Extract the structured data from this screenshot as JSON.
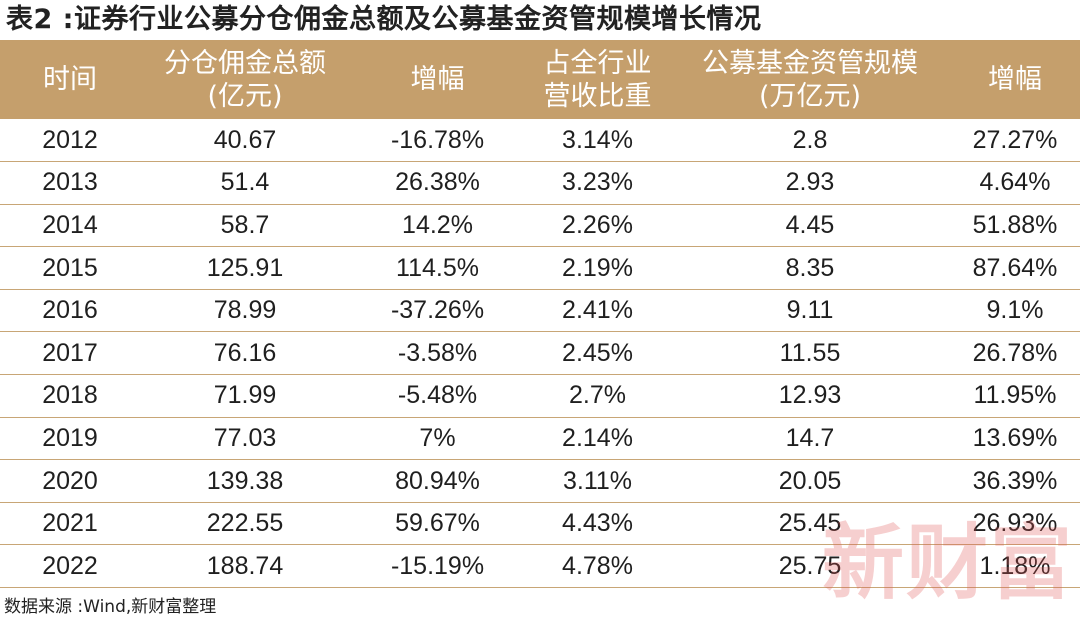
{
  "title": "表2 :证券行业公募分仓佣金总额及公募基金资管规模增长情况",
  "table": {
    "headers": [
      {
        "line1": "时间",
        "line2": ""
      },
      {
        "line1": "分仓佣金总额",
        "line2": "(亿元)"
      },
      {
        "line1": "增幅",
        "line2": ""
      },
      {
        "line1": "占全行业",
        "line2": "营收比重"
      },
      {
        "line1": "公募基金资管规模",
        "line2": "(万亿元)"
      },
      {
        "line1": "增幅",
        "line2": ""
      }
    ],
    "rows": [
      [
        "2012",
        "40.67",
        "-16.78%",
        "3.14%",
        "2.8",
        "27.27%"
      ],
      [
        "2013",
        "51.4",
        "26.38%",
        "3.23%",
        "2.93",
        "4.64%"
      ],
      [
        "2014",
        "58.7",
        "14.2%",
        "2.26%",
        "4.45",
        "51.88%"
      ],
      [
        "2015",
        "125.91",
        "114.5%",
        "2.19%",
        "8.35",
        "87.64%"
      ],
      [
        "2016",
        "78.99",
        "-37.26%",
        "2.41%",
        "9.11",
        "9.1%"
      ],
      [
        "2017",
        "76.16",
        "-3.58%",
        "2.45%",
        "11.55",
        "26.78%"
      ],
      [
        "2018",
        "71.99",
        "-5.48%",
        "2.7%",
        "12.93",
        "11.95%"
      ],
      [
        "2019",
        "77.03",
        "7%",
        "2.14%",
        "14.7",
        "13.69%"
      ],
      [
        "2020",
        "139.38",
        "80.94%",
        "3.11%",
        "20.05",
        "36.39%"
      ],
      [
        "2021",
        "222.55",
        "59.67%",
        "4.43%",
        "25.45",
        "26.93%"
      ],
      [
        "2022",
        "188.74",
        "-15.19%",
        "4.78%",
        "25.75",
        "1.18%"
      ]
    ]
  },
  "source": "数据来源 :Wind,新财富整理",
  "watermark": "新财富",
  "colors": {
    "header_bg": "#c59f6c",
    "row_border": "#c8a676",
    "watermark": "#e25555"
  }
}
